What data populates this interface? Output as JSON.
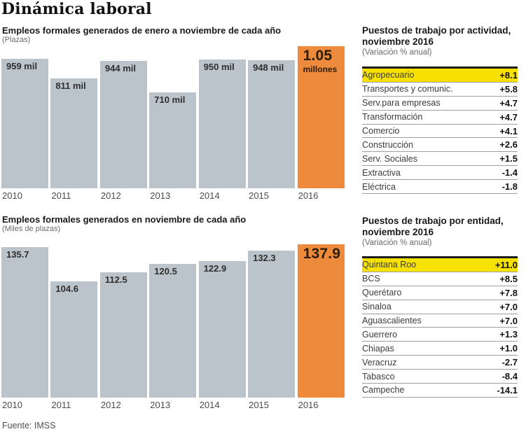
{
  "page": {
    "title": "Dinámica laboral",
    "source": "Fuente: IMSS"
  },
  "colors": {
    "bar_gray": "#bbc4ca",
    "accent_orange": "#ee8a3c",
    "highlight_yellow": "#f6e100",
    "accent_text": "#2f1c05",
    "rule_dark": "#1b1b1b",
    "row_line": "#9aa0a5"
  },
  "chart_data": [
    {
      "type": "bar",
      "title": "Empleos formales generados de enero a noviembre de cada año",
      "unit_label": "(Plazas)",
      "categories": [
        "2010",
        "2011",
        "2012",
        "2013",
        "2014",
        "2015",
        "2016"
      ],
      "values": [
        959,
        811,
        944,
        710,
        950,
        948,
        1050
      ],
      "value_unit": "miles de plazas",
      "bar_labels": [
        "959 mil",
        "811 mil",
        "944 mil",
        "710 mil",
        "950 mil",
        "948 mil"
      ],
      "highlight_index": 6,
      "highlight_label": {
        "big": "1.05",
        "small": "millones"
      },
      "ylim": [
        0,
        1050
      ],
      "grid": false,
      "legend": "none"
    },
    {
      "type": "bar",
      "title": "Empleos formales generados en noviembre de cada año",
      "unit_label": "(Miles de plazas)",
      "categories": [
        "2010",
        "2011",
        "2012",
        "2013",
        "2014",
        "2015",
        "2016"
      ],
      "values": [
        135.7,
        104.6,
        112.5,
        120.5,
        122.9,
        132.3,
        137.9
      ],
      "value_unit": "miles de plazas",
      "bar_labels": [
        "135.7",
        "104.6",
        "112.5",
        "120.5",
        "122.9",
        "132.3"
      ],
      "highlight_index": 6,
      "highlight_label": {
        "big": "137.9",
        "small": ""
      },
      "ylim": [
        0,
        137.9
      ],
      "grid": false,
      "legend": "none"
    }
  ],
  "tables": [
    {
      "title_line1": "Puestos de trabajo por actividad,",
      "title_line2": "noviembre 2016",
      "note": "(Variación % anual)",
      "highlight_index": 0,
      "rows": [
        {
          "label": "Agropecuario",
          "value": "+8.1"
        },
        {
          "label": "Transportes y comunic.",
          "value": "+5.8"
        },
        {
          "label": "Serv.para empresas",
          "value": "+4.7"
        },
        {
          "label": "Transformación",
          "value": "+4.7"
        },
        {
          "label": "Comercio",
          "value": "+4.1"
        },
        {
          "label": "Construcción",
          "value": "+2.6"
        },
        {
          "label": "Serv. Sociales",
          "value": "+1.5"
        },
        {
          "label": "Extractiva",
          "value": "-1.4"
        },
        {
          "label": "Eléctrica",
          "value": "-1.8"
        }
      ]
    },
    {
      "title_line1": "Puestos de trabajo por entidad,",
      "title_line2": "noviembre 2016",
      "note": "(Variación % anual)",
      "highlight_index": 0,
      "rows": [
        {
          "label": "Quintana Roo",
          "value": "+11.0"
        },
        {
          "label": "BCS",
          "value": "+8.5"
        },
        {
          "label": "Querétaro",
          "value": "+7.8"
        },
        {
          "label": "Sinaloa",
          "value": "+7.0"
        },
        {
          "label": "Aguascalientes",
          "value": "+7.0"
        },
        {
          "label": "Guerrero",
          "value": "+1.3"
        },
        {
          "label": "Chiapas",
          "value": "+1.0"
        },
        {
          "label": "Veracruz",
          "value": "-2.7"
        },
        {
          "label": "Tabasco",
          "value": "-8.4"
        },
        {
          "label": "Campeche",
          "value": "-14.1"
        }
      ]
    }
  ]
}
